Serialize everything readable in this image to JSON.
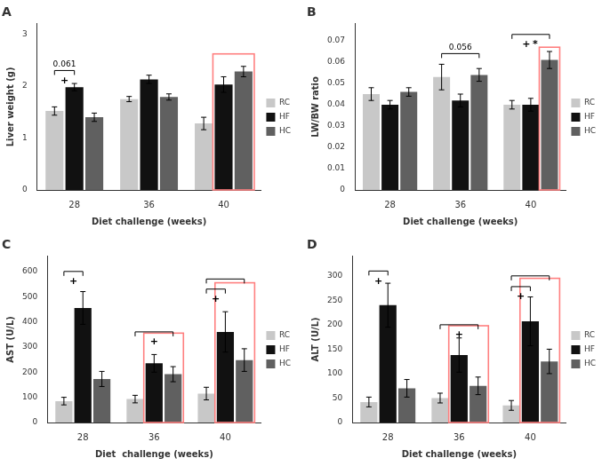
{
  "chart_data": [
    {
      "type": "bar",
      "title": "A",
      "xlabel": "Diet challenge (weeks)",
      "ylabel": "Liver weight (g)",
      "categories": [
        "28",
        "36",
        "40"
      ],
      "series": [
        {
          "name": "RC",
          "color": "#c8c8c8",
          "values": [
            1.52,
            1.75,
            1.28
          ],
          "errors": [
            0.08,
            0.05,
            0.12
          ]
        },
        {
          "name": "HF",
          "color": "#111111",
          "values": [
            1.98,
            2.13,
            2.03
          ],
          "errors": [
            0.07,
            0.08,
            0.15
          ]
        },
        {
          "name": "HC",
          "color": "#606060",
          "values": [
            1.4,
            1.79,
            2.28
          ],
          "errors": [
            0.08,
            0.06,
            0.1
          ]
        }
      ],
      "ylim": [
        0,
        3.2
      ],
      "yticks": [
        0,
        1,
        2,
        3
      ],
      "grid": false,
      "legend": "right",
      "annotations": [
        {
          "category": "28",
          "series": [
            "RC",
            "HF"
          ],
          "y": 2.3,
          "text": "0.061",
          "below": [
            "+"
          ]
        }
      ],
      "highlights": [
        {
          "category": "40",
          "series": [
            "HF",
            "HC"
          ],
          "y": 2.62,
          "color": "#FF8080"
        }
      ]
    },
    {
      "type": "bar",
      "title": "B",
      "xlabel": "Diet challenge (weeks)",
      "ylabel": "LW/BW ratio",
      "categories": [
        "28",
        "36",
        "40"
      ],
      "series": [
        {
          "name": "RC",
          "color": "#c8c8c8",
          "values": [
            0.045,
            0.053,
            0.04
          ],
          "errors": [
            0.003,
            0.006,
            0.002
          ]
        },
        {
          "name": "HF",
          "color": "#111111",
          "values": [
            0.04,
            0.042,
            0.04
          ],
          "errors": [
            0.002,
            0.003,
            0.003
          ]
        },
        {
          "name": "HC",
          "color": "#606060",
          "values": [
            0.046,
            0.054,
            0.061
          ],
          "errors": [
            0.002,
            0.003,
            0.004
          ]
        }
      ],
      "ylim": [
        0,
        0.078
      ],
      "yticks": [
        0,
        0.01,
        0.02,
        0.03,
        0.04,
        0.05,
        0.06,
        0.07
      ],
      "grid": false,
      "legend": "right",
      "annotations": [
        {
          "category": "36",
          "series": [
            "RC",
            "HC"
          ],
          "y": 0.064,
          "text": "0.056"
        },
        {
          "category": "40",
          "series": [
            "RC",
            "HC"
          ],
          "y": 0.073,
          "below": [
            "+",
            "*"
          ]
        }
      ],
      "highlights": [
        {
          "category": "40",
          "series": [
            "HC",
            "HC"
          ],
          "y": 0.067,
          "color": "#FF8080"
        }
      ]
    },
    {
      "type": "bar",
      "title": "C",
      "xlabel": "Diet  challenge (weeks)",
      "ylabel": "AST (U/L)",
      "categories": [
        "28",
        "36",
        "40"
      ],
      "series": [
        {
          "name": "RC",
          "color": "#c8c8c8",
          "values": [
            85,
            93,
            115
          ],
          "errors": [
            15,
            15,
            25
          ]
        },
        {
          "name": "HF",
          "color": "#111111",
          "values": [
            455,
            235,
            360
          ],
          "errors": [
            65,
            35,
            80
          ]
        },
        {
          "name": "HC",
          "color": "#606060",
          "values": [
            173,
            192,
            248
          ],
          "errors": [
            30,
            30,
            45
          ]
        }
      ],
      "ylim": [
        0,
        660
      ],
      "yticks": [
        0,
        100,
        200,
        300,
        400,
        500,
        600
      ],
      "grid": false,
      "legend": "right",
      "annotations": [
        {
          "category": "28",
          "series": [
            "RC",
            "HF"
          ],
          "y": 600,
          "below": [
            "+"
          ]
        },
        {
          "category": "36",
          "series": [
            "RC",
            "HC"
          ],
          "y": 360,
          "below": [
            "+"
          ]
        },
        {
          "category": "40",
          "series": [
            "RC",
            "HC"
          ],
          "y": 570
        },
        {
          "category": "40",
          "series": [
            "RC",
            "HF"
          ],
          "y": 530,
          "below": [
            "+"
          ]
        }
      ],
      "highlights": [
        {
          "category": "36",
          "series": [
            "HF",
            "HC"
          ],
          "y": 355,
          "color": "#FF8080"
        },
        {
          "category": "40",
          "series": [
            "HF",
            "HC"
          ],
          "y": 555,
          "color": "#FF8080"
        }
      ]
    },
    {
      "type": "bar",
      "title": "D",
      "xlabel": "Diet challenge (weeks)",
      "ylabel": "ALT (U/L)",
      "categories": [
        "28",
        "36",
        "40"
      ],
      "series": [
        {
          "name": "RC",
          "color": "#c8c8c8",
          "values": [
            42,
            50,
            35
          ],
          "errors": [
            10,
            10,
            10
          ]
        },
        {
          "name": "HF",
          "color": "#111111",
          "values": [
            240,
            138,
            207
          ],
          "errors": [
            45,
            35,
            50
          ]
        },
        {
          "name": "HC",
          "color": "#606060",
          "values": [
            70,
            75,
            125
          ],
          "errors": [
            18,
            18,
            25
          ]
        }
      ],
      "ylim": [
        0,
        340
      ],
      "yticks": [
        0,
        50,
        100,
        150,
        200,
        250,
        300
      ],
      "grid": false,
      "legend": "right",
      "annotations": [
        {
          "category": "28",
          "series": [
            "RC",
            "HF"
          ],
          "y": 310,
          "below": [
            "+"
          ]
        },
        {
          "category": "36",
          "series": [
            "RC",
            "HC"
          ],
          "y": 200,
          "below": [
            "+"
          ]
        },
        {
          "category": "40",
          "series": [
            "RC",
            "HC"
          ],
          "y": 300
        },
        {
          "category": "40",
          "series": [
            "RC",
            "HF"
          ],
          "y": 278,
          "below": [
            "+"
          ]
        }
      ],
      "highlights": [
        {
          "category": "36",
          "series": [
            "HF",
            "HC"
          ],
          "y": 198,
          "color": "#FF8080"
        },
        {
          "category": "40",
          "series": [
            "HF",
            "HC"
          ],
          "y": 295,
          "color": "#FF8080"
        }
      ]
    }
  ]
}
